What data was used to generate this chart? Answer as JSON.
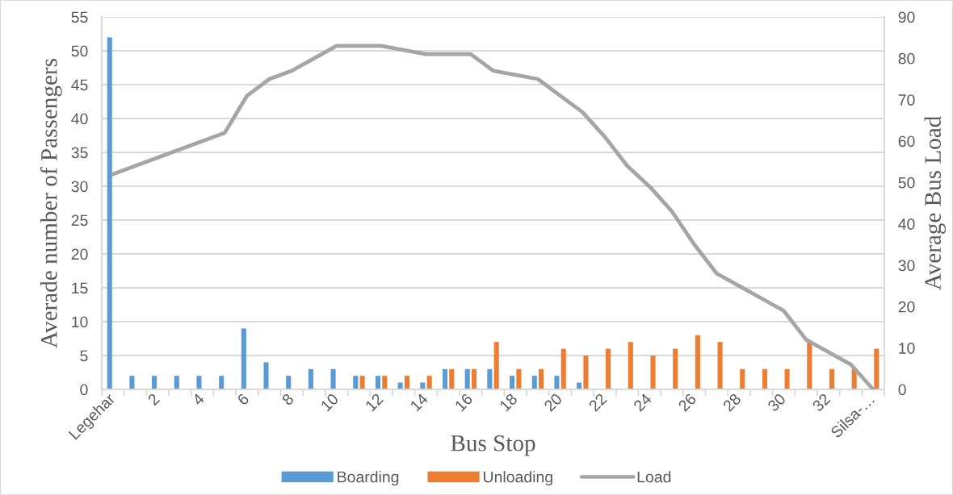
{
  "chart_data": {
    "type": "bar",
    "xlabel": "Bus Stop",
    "ylabel": "Averade number of Passengers",
    "y2label": "Average Bus Load",
    "categories": [
      "Legehar",
      null,
      "2",
      null,
      "4",
      null,
      "6",
      null,
      "8",
      null,
      "10",
      null,
      "12",
      null,
      "14",
      null,
      "16",
      null,
      "18",
      null,
      "20",
      null,
      "22",
      null,
      "24",
      null,
      "26",
      null,
      "28",
      null,
      "30",
      null,
      "32",
      null,
      "Silsa-…"
    ],
    "series": [
      {
        "name": "Boarding",
        "color": "#5b9bd5",
        "values": [
          52,
          2,
          2,
          2,
          2,
          2,
          9,
          4,
          2,
          3,
          3,
          2,
          2,
          1,
          1,
          3,
          3,
          3,
          2,
          2,
          2,
          1,
          null,
          null,
          null,
          null,
          null,
          null,
          null,
          null,
          null,
          null,
          null,
          null,
          null
        ]
      },
      {
        "name": "Unloading",
        "color": "#ed7d31",
        "values": [
          null,
          null,
          null,
          null,
          null,
          null,
          null,
          null,
          null,
          null,
          null,
          2,
          2,
          2,
          2,
          3,
          3,
          7,
          3,
          3,
          6,
          5,
          6,
          7,
          5,
          6,
          8,
          7,
          3,
          3,
          3,
          7,
          3,
          3,
          6
        ]
      },
      {
        "name": "Load",
        "type": "line",
        "axis": "y2",
        "color": "#a5a5a5",
        "values": [
          52,
          54,
          56,
          58,
          60,
          62,
          71,
          75,
          77,
          80,
          83,
          83,
          83,
          82,
          81,
          81,
          81,
          77,
          76,
          75,
          71,
          67,
          61,
          54,
          49,
          43,
          35,
          28,
          25,
          22,
          19,
          12,
          9,
          6,
          0
        ]
      }
    ],
    "ylim": [
      0,
      55
    ],
    "yticks": [
      0,
      5,
      10,
      15,
      20,
      25,
      30,
      35,
      40,
      45,
      50,
      55
    ],
    "y2lim": [
      0,
      90
    ],
    "y2ticks": [
      0,
      10,
      20,
      30,
      40,
      50,
      60,
      70,
      80,
      90
    ],
    "grid": "y",
    "legend": "bottom"
  }
}
